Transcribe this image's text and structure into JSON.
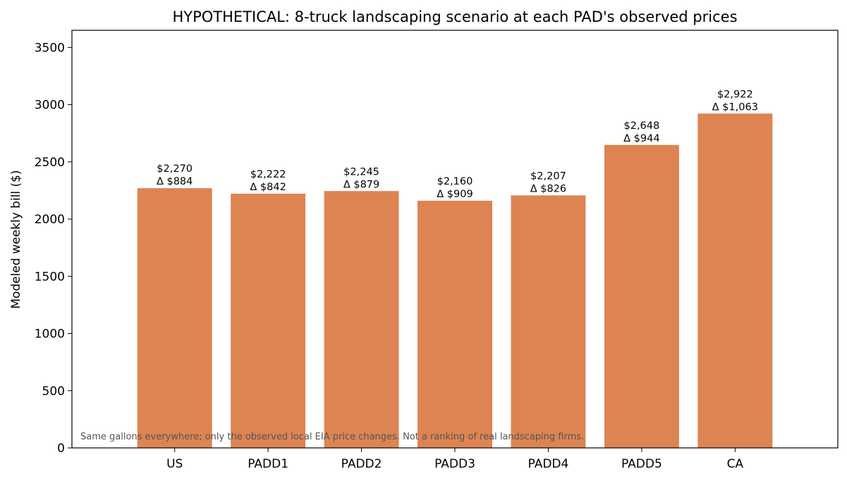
{
  "colors": {
    "bar": "#dd8452",
    "axis": "#000000",
    "footnote_text": "#555555"
  },
  "chart_data": {
    "type": "bar",
    "title": "HYPOTHETICAL: 8-truck landscaping scenario at each PAD's observed prices",
    "xlabel": "",
    "ylabel": "Modeled weekly bill ($)",
    "ylim": [
      0,
      3650
    ],
    "yticks": [
      0,
      500,
      1000,
      1500,
      2000,
      2500,
      3000,
      3500
    ],
    "grid": false,
    "categories": [
      "US",
      "PADD1",
      "PADD2",
      "PADD3",
      "PADD4",
      "PADD5",
      "CA"
    ],
    "values": [
      2270,
      2222,
      2245,
      2160,
      2207,
      2648,
      2922
    ],
    "value_labels": [
      "$2,270",
      "$2,222",
      "$2,245",
      "$2,160",
      "$2,207",
      "$2,648",
      "$2,922"
    ],
    "delta_labels": [
      "Δ $884",
      "Δ $842",
      "Δ $879",
      "Δ $909",
      "Δ $826",
      "Δ $944",
      "Δ $1,063"
    ],
    "annotation": "Same gallons everywhere; only the observed local EIA price changes. Not a ranking of real landscaping firms."
  }
}
